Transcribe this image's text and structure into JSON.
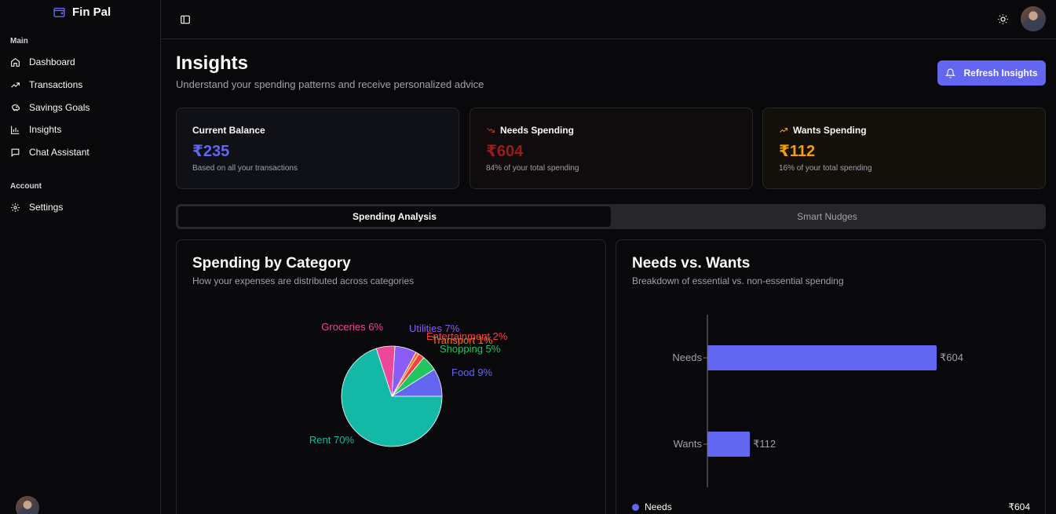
{
  "app": {
    "name": "Fin Pal"
  },
  "sidebar": {
    "groups": [
      {
        "label": "Main",
        "items": [
          {
            "label": "Dashboard",
            "icon": "home-icon"
          },
          {
            "label": "Transactions",
            "icon": "trending-up-icon"
          },
          {
            "label": "Savings Goals",
            "icon": "piggy-bank-icon"
          },
          {
            "label": "Insights",
            "icon": "bar-chart-icon"
          },
          {
            "label": "Chat Assistant",
            "icon": "message-square-icon"
          }
        ]
      },
      {
        "label": "Account",
        "items": [
          {
            "label": "Settings",
            "icon": "gear-icon"
          }
        ]
      }
    ]
  },
  "header": {
    "title": "Insights",
    "subtitle": "Understand your spending patterns and receive personalized advice",
    "refresh_label": "Refresh Insights"
  },
  "stats": [
    {
      "title": "Current Balance",
      "value": "₹235",
      "note": "Based on all your transactions",
      "color": "#6366f1"
    },
    {
      "title": "Needs Spending",
      "value": "₹604",
      "note": "84% of your total spending",
      "color": "#991b1b"
    },
    {
      "title": "Wants Spending",
      "value": "₹112",
      "note": "16% of your total spending",
      "color": "#f59e0b"
    }
  ],
  "tabs": [
    {
      "label": "Spending Analysis",
      "active": true
    },
    {
      "label": "Smart Nudges",
      "active": false
    }
  ],
  "category_card": {
    "title": "Spending by Category",
    "subtitle": "How your expenses are distributed across categories"
  },
  "needs_wants_card": {
    "title": "Needs vs. Wants",
    "subtitle": "Breakdown of essential vs. non-essential spending"
  },
  "chart_data": [
    {
      "type": "pie",
      "slices": [
        {
          "label": "Food",
          "percent": 9,
          "text": "Food 9%",
          "color": "#6366f1"
        },
        {
          "label": "Shopping",
          "percent": 5,
          "text": "Shopping 5%",
          "color": "#22c55e"
        },
        {
          "label": "Entertainment",
          "percent": 2,
          "text": "Entertainment 2%",
          "color": "#ef4444"
        },
        {
          "label": "Transport",
          "percent": 1,
          "text": "Transport 1%",
          "color": "#f97316"
        },
        {
          "label": "Utilities",
          "percent": 7,
          "text": "Utilities 7%",
          "color": "#8b5cf6"
        },
        {
          "label": "Groceries",
          "percent": 6,
          "text": "Groceries 6%",
          "color": "#ec4899"
        },
        {
          "label": "Rent",
          "percent": 70,
          "text": "Rent 70%",
          "color": "#14b8a6"
        }
      ]
    },
    {
      "type": "bar",
      "orientation": "horizontal",
      "categories": [
        "Needs",
        "Wants"
      ],
      "values": [
        604,
        112
      ],
      "value_labels": [
        "₹604",
        "₹112"
      ],
      "color": "#6366f1",
      "legend": [
        {
          "label": "Needs",
          "value": "₹604",
          "color": "#6366f1"
        }
      ]
    }
  ]
}
